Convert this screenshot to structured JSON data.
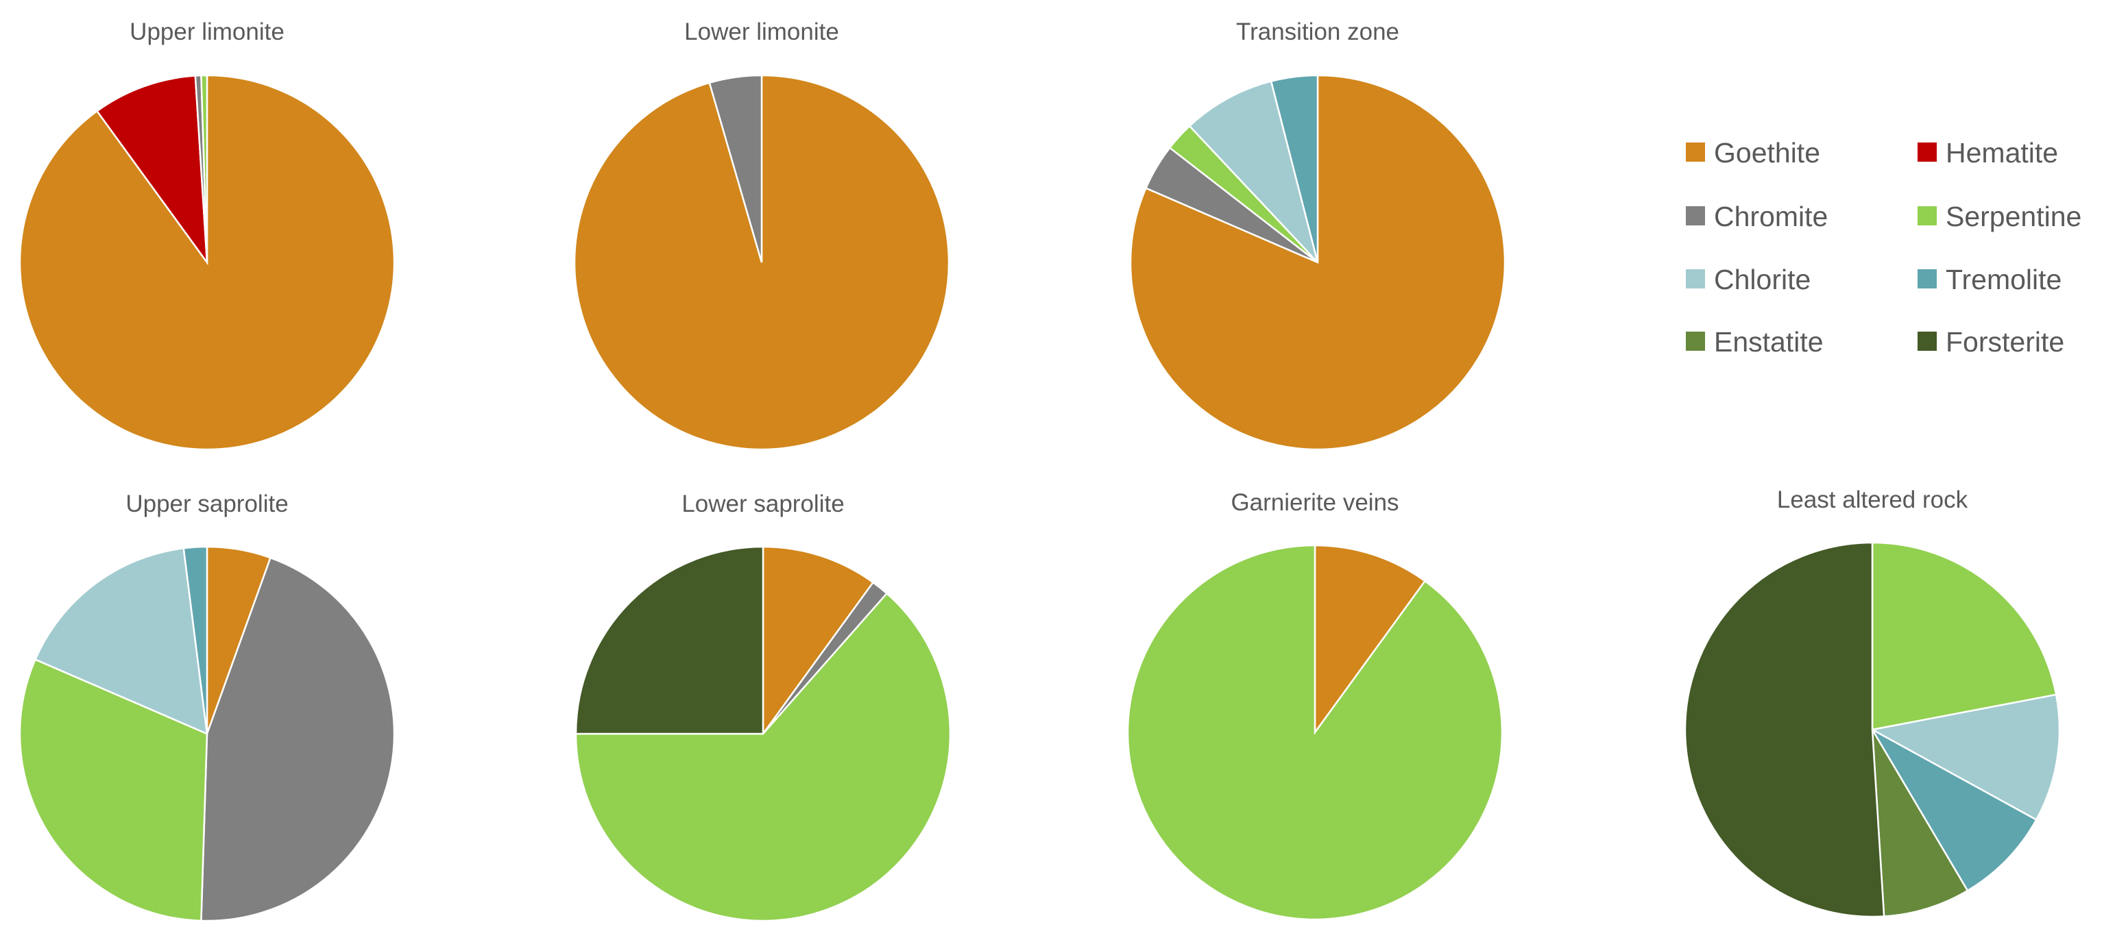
{
  "chart_data": [
    {
      "type": "pie",
      "title": "Upper limonite",
      "slices": [
        {
          "label": "Goethite",
          "value": 90.0
        },
        {
          "label": "Hematite",
          "value": 9.0
        },
        {
          "label": "Chromite",
          "value": 0.5
        },
        {
          "label": "Serpentine",
          "value": 0.5
        }
      ]
    },
    {
      "type": "pie",
      "title": "Lower limonite",
      "slices": [
        {
          "label": "Goethite",
          "value": 95.5
        },
        {
          "label": "Chromite",
          "value": 4.5
        }
      ]
    },
    {
      "type": "pie",
      "title": "Transition zone",
      "slices": [
        {
          "label": "Goethite",
          "value": 81.5
        },
        {
          "label": "Chromite",
          "value": 4.0
        },
        {
          "label": "Serpentine",
          "value": 2.5
        },
        {
          "label": "Chlorite",
          "value": 8.0
        },
        {
          "label": "Tremolite",
          "value": 4.0
        }
      ]
    },
    {
      "type": "pie",
      "title": "Upper saprolite",
      "slices": [
        {
          "label": "Goethite",
          "value": 5.5
        },
        {
          "label": "Chromite",
          "value": 45.0
        },
        {
          "label": "Serpentine",
          "value": 31.0
        },
        {
          "label": "Chlorite",
          "value": 16.5
        },
        {
          "label": "Tremolite",
          "value": 2.0
        }
      ]
    },
    {
      "type": "pie",
      "title": "Lower saprolite",
      "slices": [
        {
          "label": "Goethite",
          "value": 10.0
        },
        {
          "label": "Chromite",
          "value": 1.5
        },
        {
          "label": "Serpentine",
          "value": 63.5
        },
        {
          "label": "Forsterite",
          "value": 25.0
        }
      ]
    },
    {
      "type": "pie",
      "title": "Garnierite veins",
      "slices": [
        {
          "label": "Goethite",
          "value": 10.0
        },
        {
          "label": "Serpentine",
          "value": 90.0
        }
      ]
    },
    {
      "type": "pie",
      "title": "Least altered rock",
      "slices": [
        {
          "label": "Serpentine",
          "value": 22.0
        },
        {
          "label": "Chlorite",
          "value": 11.0
        },
        {
          "label": "Tremolite",
          "value": 8.5
        },
        {
          "label": "Enstatite",
          "value": 7.5
        },
        {
          "label": "Forsterite",
          "value": 51.0
        }
      ]
    }
  ],
  "legend": {
    "placement": "top-right",
    "items": [
      {
        "label": "Goethite",
        "color": "#D2861B"
      },
      {
        "label": "Hematite",
        "color": "#C00000"
      },
      {
        "label": "Chromite",
        "color": "#808080"
      },
      {
        "label": "Serpentine",
        "color": "#92D050"
      },
      {
        "label": "Chlorite",
        "color": "#A2CBD0"
      },
      {
        "label": "Tremolite",
        "color": "#5FA5AE"
      },
      {
        "label": "Enstatite",
        "color": "#66893C"
      },
      {
        "label": "Forsterite",
        "color": "#445A27"
      }
    ]
  }
}
